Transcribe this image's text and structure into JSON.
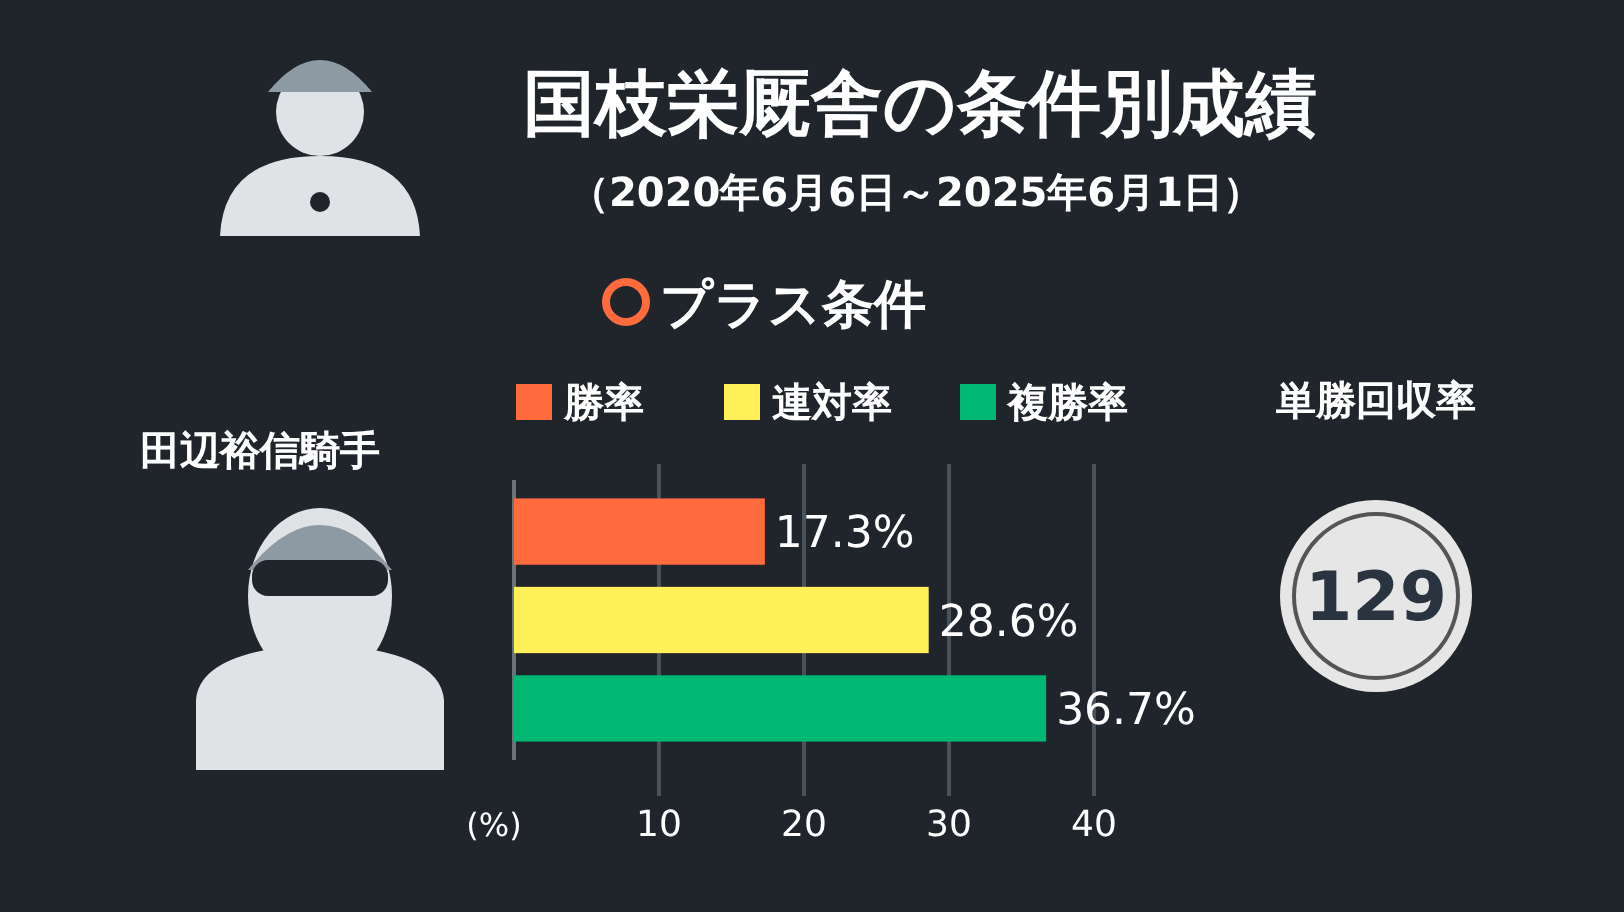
{
  "chart_data": {
    "type": "bar",
    "orientation": "horizontal",
    "title": "国枝栄厩舎の条件別成績",
    "subtitle": "（2020年6月6日～2025年6月1日）",
    "xlabel": "(%)",
    "categories": [
      null
    ],
    "series": [
      {
        "name": "勝率",
        "color": "#ff6b3d",
        "values": [
          17.3
        ],
        "value_labels": [
          "17.3%"
        ]
      },
      {
        "name": "連対率",
        "color": "#fff05a",
        "values": [
          28.6
        ],
        "value_labels": [
          "28.6%"
        ]
      },
      {
        "name": "複勝率",
        "color": "#00b872",
        "values": [
          36.7
        ],
        "value_labels": [
          "36.7%"
        ]
      }
    ],
    "xlim": [
      0,
      40
    ],
    "xticks": [
      10,
      20,
      30,
      40
    ],
    "grid": "x",
    "legend": "top",
    "annotations": [
      "プラス条件",
      "田辺裕信騎手",
      "単勝回収率",
      "129"
    ]
  }
}
